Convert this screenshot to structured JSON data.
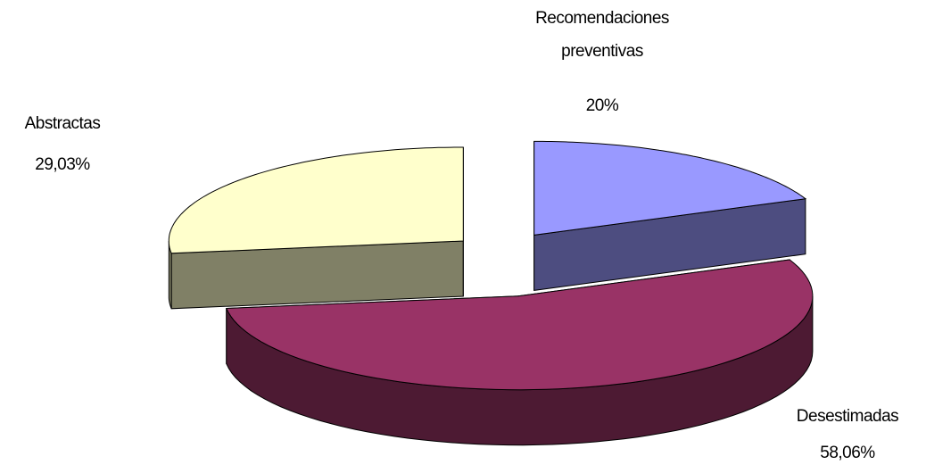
{
  "chart_data": {
    "type": "pie3d",
    "categories": [
      "Recomendaciones preventivas",
      "Desestimadas",
      "Abstractas"
    ],
    "values": [
      20,
      58.06,
      29.03
    ],
    "value_labels": [
      "20%",
      "58,06%",
      "29,03%"
    ],
    "colors": [
      "#9999ff",
      "#993366",
      "#ffffcc"
    ]
  }
}
